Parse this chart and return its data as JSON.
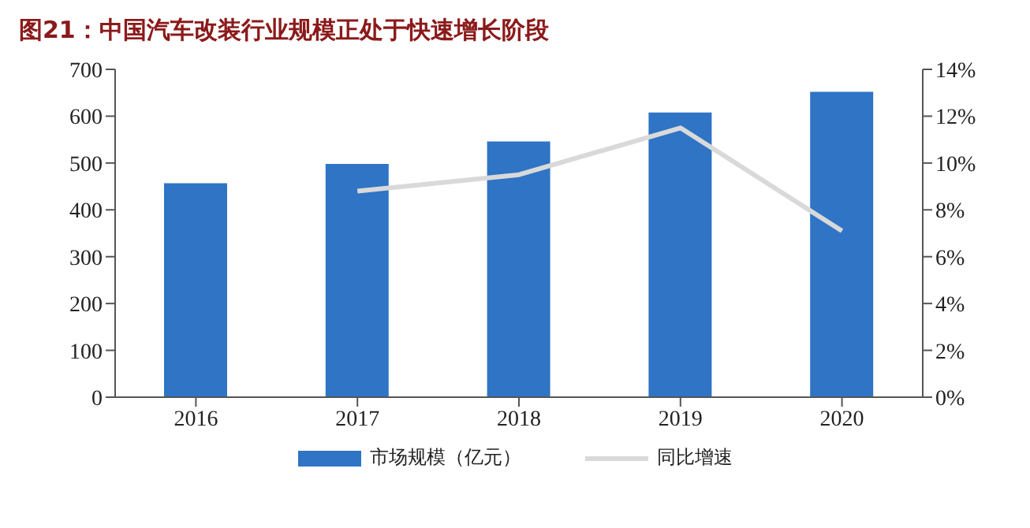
{
  "chart_data": {
    "type": "bar",
    "title": "图21：中国汽车改装行业规模正处于快速增长阶段",
    "categories": [
      "2016",
      "2017",
      "2018",
      "2019",
      "2020"
    ],
    "series": [
      {
        "name": "市场规模（亿元）",
        "color": "#2f74c5",
        "values": [
          457,
          498,
          546,
          608,
          652
        ]
      },
      {
        "name": "同比增速",
        "type": "line",
        "axis": "y2",
        "color": "#d9d9d9",
        "values": [
          null,
          8.8,
          9.5,
          11.5,
          7.1
        ]
      }
    ],
    "ylim": [
      0,
      700
    ],
    "yticks": [
      0,
      100,
      200,
      300,
      400,
      500,
      600,
      700
    ],
    "y2lim": [
      0,
      14
    ],
    "y2ticks": [
      {
        "value": 0,
        "label": "0%"
      },
      {
        "value": 2,
        "label": "2%"
      },
      {
        "value": 4,
        "label": "4%"
      },
      {
        "value": 6,
        "label": "6%"
      },
      {
        "value": 8,
        "label": "8%"
      },
      {
        "value": 10,
        "label": "10%"
      },
      {
        "value": 12,
        "label": "12%"
      },
      {
        "value": 14,
        "label": "14%"
      }
    ],
    "grid": false,
    "legend": "bottom",
    "marker": "none"
  }
}
